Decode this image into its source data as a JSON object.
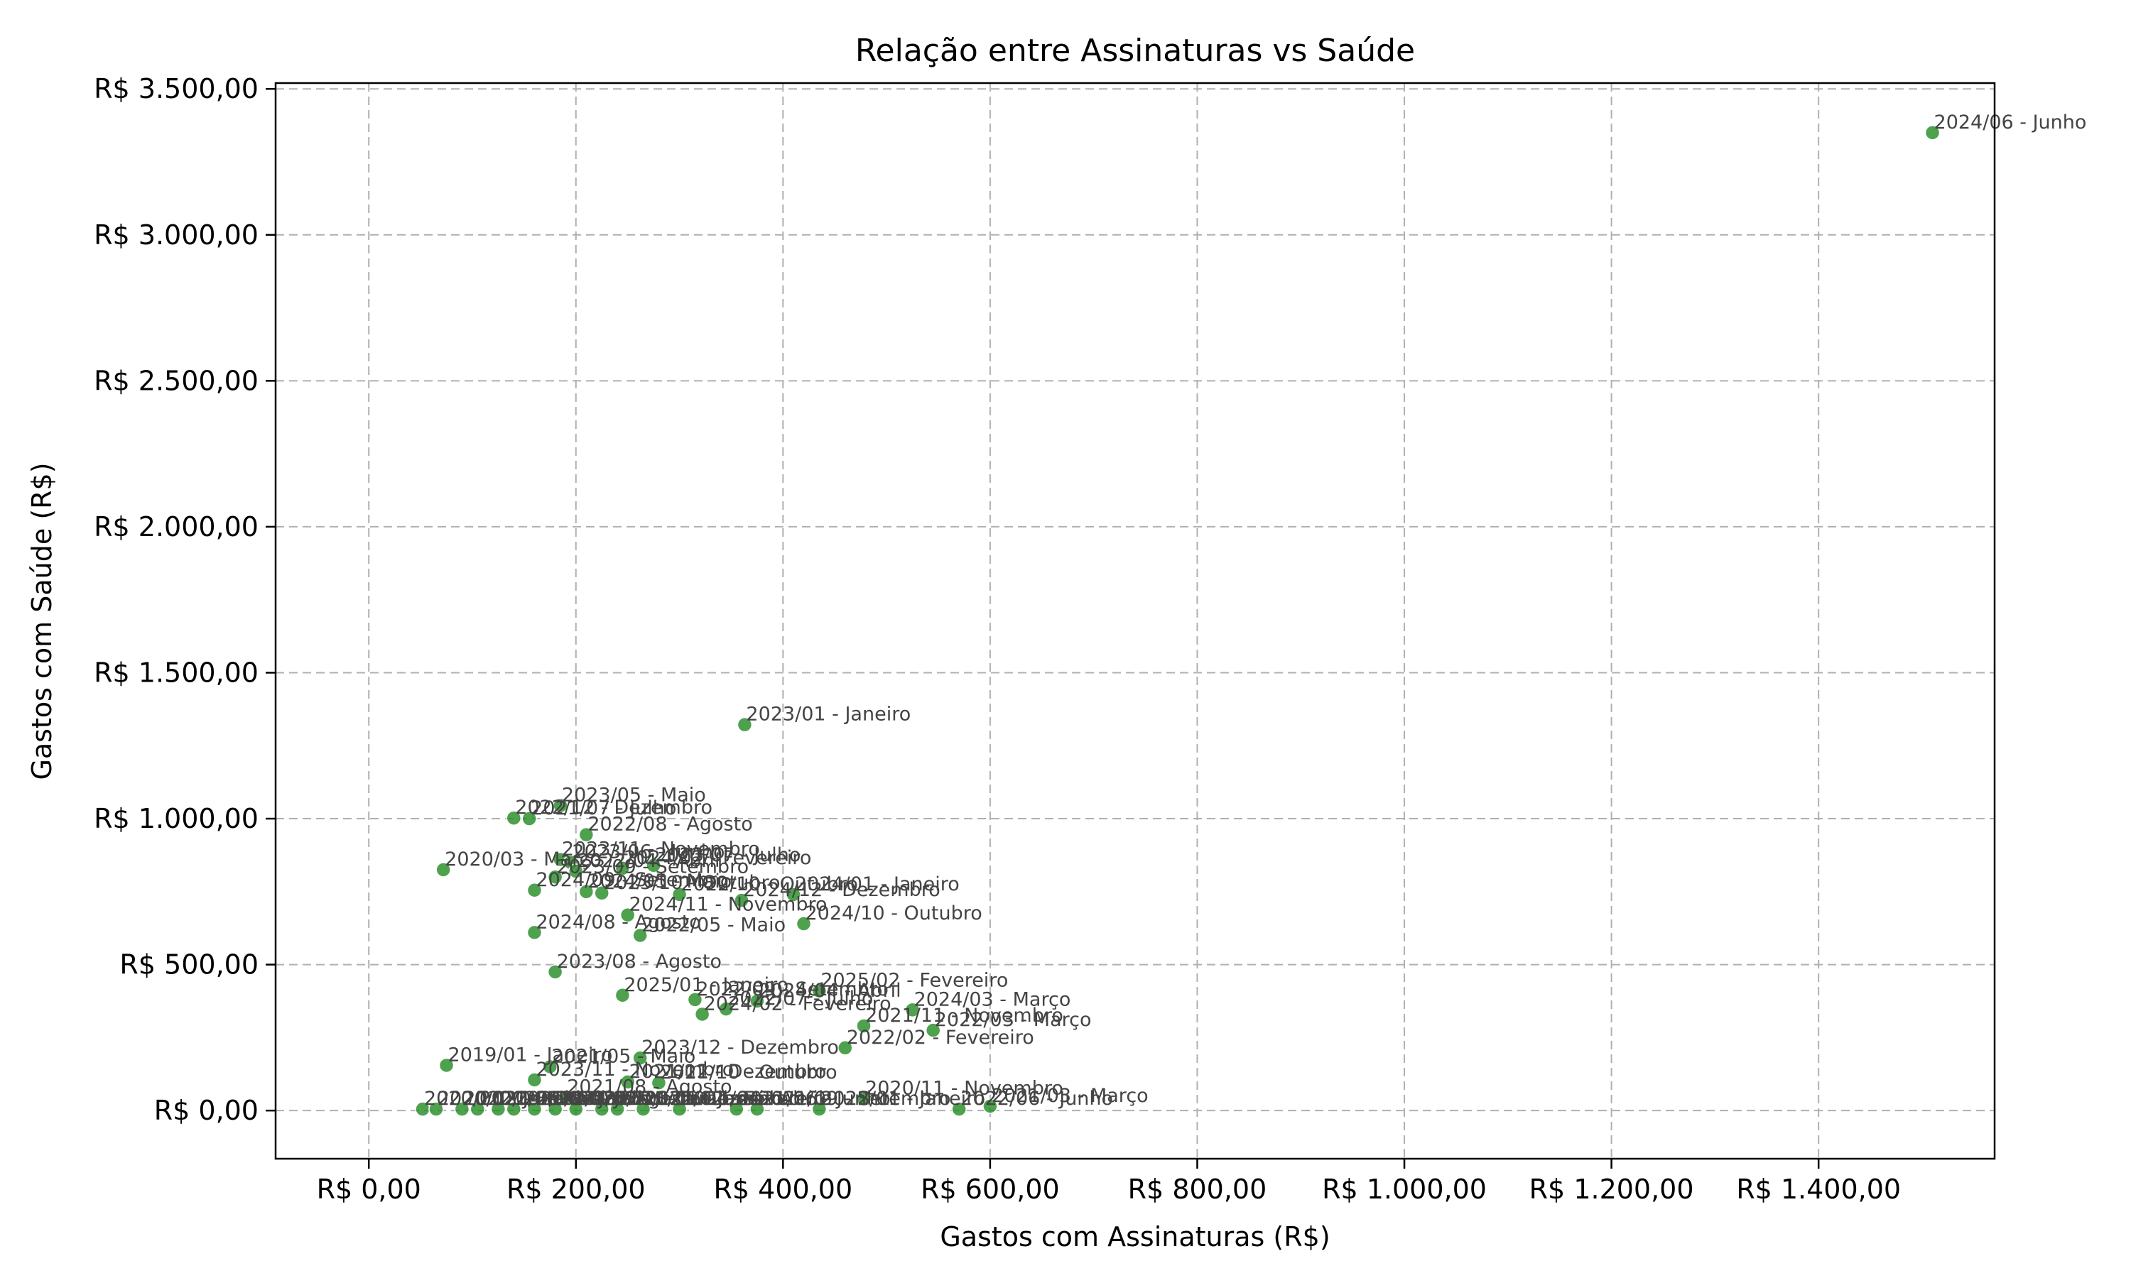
{
  "chart_data": {
    "type": "scatter",
    "title": "Relação entre Assinaturas vs Saúde",
    "xlabel": "Gastos com Assinaturas (R$)",
    "ylabel": "Gastos com Saúde (R$)",
    "xlim": [
      -90,
      1570
    ],
    "ylim": [
      -165,
      3520
    ],
    "xticks": [
      0,
      200,
      400,
      600,
      800,
      1000,
      1200,
      1400
    ],
    "yticks": [
      0,
      500,
      1000,
      1500,
      2000,
      2500,
      3000,
      3500
    ],
    "xtick_labels": [
      "R$ 0,00",
      "R$ 200,00",
      "R$ 400,00",
      "R$ 600,00",
      "R$ 800,00",
      "R$ 1.000,00",
      "R$ 1.200,00",
      "R$ 1.400,00"
    ],
    "ytick_labels": [
      "R$ 0,00",
      "R$ 500,00",
      "R$ 1.000,00",
      "R$ 1.500,00",
      "R$ 2.000,00",
      "R$ 2.500,00",
      "R$ 3.000,00",
      "R$ 3.500,00"
    ],
    "grid": true,
    "legend": "none",
    "color": "#228b22",
    "points": [
      {
        "x": 1510,
        "y": 3350,
        "label": "2024/06 - Junho"
      },
      {
        "x": 363,
        "y": 1322,
        "label": "2023/01 - Janeiro"
      },
      {
        "x": 185,
        "y": 1045,
        "label": "2023/05 - Maio"
      },
      {
        "x": 140,
        "y": 1002,
        "label": "2022/12 - Dezembro"
      },
      {
        "x": 155,
        "y": 1000,
        "label": "2021/07 - Julho"
      },
      {
        "x": 210,
        "y": 945,
        "label": "2022/08 - Agosto"
      },
      {
        "x": 72,
        "y": 825,
        "label": "2020/03 - Março"
      },
      {
        "x": 185,
        "y": 860,
        "label": "2023/11 - Novembro"
      },
      {
        "x": 195,
        "y": 850,
        "label": "2023/06 - Junho"
      },
      {
        "x": 275,
        "y": 840,
        "label": "2023/07 - Julho"
      },
      {
        "x": 245,
        "y": 830,
        "label": "2024/02 - Fevereiro"
      },
      {
        "x": 200,
        "y": 820,
        "label": "2022/04 - Abril"
      },
      {
        "x": 180,
        "y": 800,
        "label": "2023/09 - Setembro"
      },
      {
        "x": 160,
        "y": 755,
        "label": "2024/09 - Setembro"
      },
      {
        "x": 225,
        "y": 745,
        "label": "2023/10 - Outubro"
      },
      {
        "x": 210,
        "y": 750,
        "label": "2024/05 - Maio"
      },
      {
        "x": 410,
        "y": 740,
        "label": "2024/01 - Janeiro"
      },
      {
        "x": 300,
        "y": 740,
        "label": "2022/10 - Outubro"
      },
      {
        "x": 360,
        "y": 720,
        "label": "2024/12 - Dezembro"
      },
      {
        "x": 250,
        "y": 670,
        "label": "2024/11 - Novembro"
      },
      {
        "x": 420,
        "y": 640,
        "label": "2024/10 - Outubro"
      },
      {
        "x": 160,
        "y": 610,
        "label": "2024/08 - Agosto"
      },
      {
        "x": 262,
        "y": 600,
        "label": "2022/05 - Maio"
      },
      {
        "x": 180,
        "y": 475,
        "label": "2023/08 - Agosto"
      },
      {
        "x": 435,
        "y": 410,
        "label": "2025/02 - Fevereiro"
      },
      {
        "x": 245,
        "y": 395,
        "label": "2025/01 - Janeiro"
      },
      {
        "x": 315,
        "y": 380,
        "label": "2022/09 - Setembro"
      },
      {
        "x": 375,
        "y": 375,
        "label": "2024/04 - Abril"
      },
      {
        "x": 525,
        "y": 345,
        "label": "2024/03 - Março"
      },
      {
        "x": 345,
        "y": 348,
        "label": "2022/07 - Julho"
      },
      {
        "x": 322,
        "y": 330,
        "label": "2024/02 - Fevereiro"
      },
      {
        "x": 478,
        "y": 290,
        "label": "2021/11 - Novembro"
      },
      {
        "x": 545,
        "y": 275,
        "label": "2022/03 - Março"
      },
      {
        "x": 460,
        "y": 215,
        "label": "2022/02 - Fevereiro"
      },
      {
        "x": 262,
        "y": 180,
        "label": "2023/12 - Dezembro"
      },
      {
        "x": 75,
        "y": 155,
        "label": "2019/01 - Janeiro"
      },
      {
        "x": 175,
        "y": 150,
        "label": "2021/05 - Maio"
      },
      {
        "x": 160,
        "y": 105,
        "label": "2023/11 - Novembro"
      },
      {
        "x": 250,
        "y": 98,
        "label": "2021/12 - Dezembro"
      },
      {
        "x": 280,
        "y": 95,
        "label": "2021/10 - Outubro"
      },
      {
        "x": 190,
        "y": 45,
        "label": "2021/08 - Agosto"
      },
      {
        "x": 478,
        "y": 40,
        "label": "2020/11 - Novembro"
      },
      {
        "x": 600,
        "y": 15,
        "label": "2021/03 - Março"
      },
      {
        "x": 52,
        "y": 5,
        "label": "2020/01 - Janeiro"
      },
      {
        "x": 65,
        "y": 5,
        "label": "2020/02 - Fevereiro"
      },
      {
        "x": 90,
        "y": 5,
        "label": "2020/04 - Abril"
      },
      {
        "x": 105,
        "y": 5,
        "label": "2020/05 - Maio"
      },
      {
        "x": 125,
        "y": 5,
        "label": "2020/06 - Junho"
      },
      {
        "x": 140,
        "y": 5,
        "label": "2020/07 - Julho"
      },
      {
        "x": 160,
        "y": 5,
        "label": "2020/08 - Agosto"
      },
      {
        "x": 180,
        "y": 5,
        "label": "2020/09 - Setembro"
      },
      {
        "x": 200,
        "y": 5,
        "label": "2020/10 - Outubro"
      },
      {
        "x": 225,
        "y": 5,
        "label": "2020/12 - Dezembro"
      },
      {
        "x": 240,
        "y": 5,
        "label": "2021/01 - Janeiro"
      },
      {
        "x": 265,
        "y": 5,
        "label": "2021/02 - Fevereiro"
      },
      {
        "x": 300,
        "y": 5,
        "label": "2021/04 - Abril"
      },
      {
        "x": 355,
        "y": 5,
        "label": "2021/06 - Junho"
      },
      {
        "x": 375,
        "y": 5,
        "label": "2021/09 - Setembro"
      },
      {
        "x": 435,
        "y": 5,
        "label": "2022/01 - Janeiro"
      },
      {
        "x": 570,
        "y": 5,
        "label": "2022/06 - Junho"
      }
    ]
  }
}
